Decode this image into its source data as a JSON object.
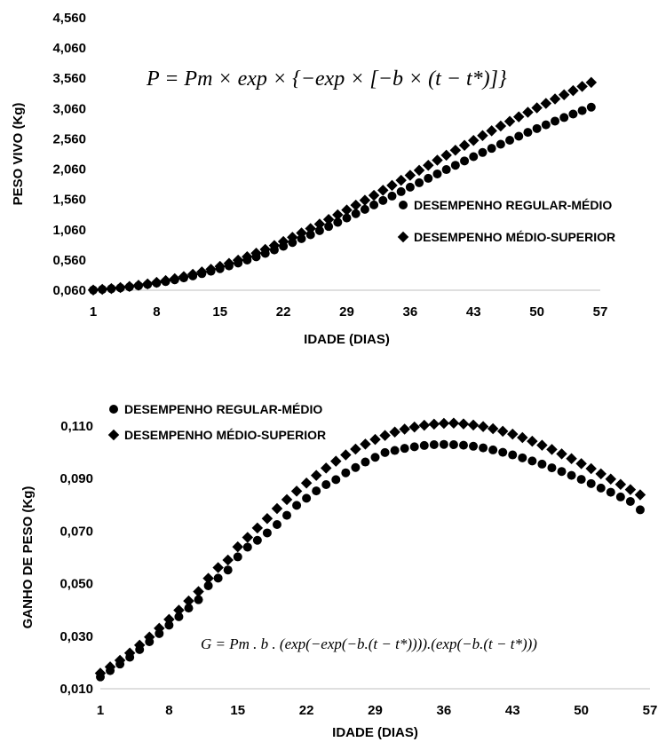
{
  "chart_data": [
    {
      "type": "scatter",
      "title": "",
      "xlabel": "IDADE (DIAS)",
      "ylabel": "PESO VIVO (Kg)",
      "xlim": [
        1,
        57
      ],
      "ylim": [
        0.06,
        4.56
      ],
      "xticks": [
        "1",
        "8",
        "15",
        "22",
        "29",
        "36",
        "43",
        "50",
        "57"
      ],
      "yticks": [
        "0,060",
        "0,560",
        "1,060",
        "1,560",
        "2,060",
        "2,560",
        "3,060",
        "3,560",
        "4,060",
        "4,560"
      ],
      "legend_position": "right",
      "formula": "P = Pm × exp × {−exp × [−b × (t − t*)]}",
      "series": [
        {
          "name": "DESEMPENHO REGULAR-MÉDIO",
          "marker": "circle",
          "x": [
            1,
            2,
            3,
            4,
            5,
            6,
            7,
            8,
            9,
            10,
            11,
            12,
            13,
            14,
            15,
            16,
            17,
            18,
            19,
            20,
            21,
            22,
            23,
            24,
            25,
            26,
            27,
            28,
            29,
            30,
            31,
            32,
            33,
            34,
            35,
            36,
            37,
            38,
            39,
            40,
            41,
            42,
            43,
            44,
            45,
            46,
            47,
            48,
            49,
            50,
            51,
            52,
            53,
            54,
            55,
            56
          ],
          "y": [
            0.063,
            0.073,
            0.085,
            0.099,
            0.115,
            0.134,
            0.155,
            0.178,
            0.204,
            0.232,
            0.263,
            0.297,
            0.334,
            0.373,
            0.416,
            0.461,
            0.509,
            0.559,
            0.612,
            0.668,
            0.726,
            0.786,
            0.848,
            0.912,
            0.977,
            1.044,
            1.113,
            1.182,
            1.253,
            1.324,
            1.396,
            1.469,
            1.542,
            1.615,
            1.688,
            1.762,
            1.835,
            1.908,
            1.981,
            2.053,
            2.124,
            2.195,
            2.266,
            2.335,
            2.403,
            2.471,
            2.537,
            2.603,
            2.667,
            2.73,
            2.792,
            2.853,
            2.912,
            2.97,
            3.027,
            3.083
          ]
        },
        {
          "name": "DESEMPENHO MÉDIO-SUPERIOR",
          "marker": "diamond",
          "x": [
            1,
            2,
            3,
            4,
            5,
            6,
            7,
            8,
            9,
            10,
            11,
            12,
            13,
            14,
            15,
            16,
            17,
            18,
            19,
            20,
            21,
            22,
            23,
            24,
            25,
            26,
            27,
            28,
            29,
            30,
            31,
            32,
            33,
            34,
            35,
            36,
            37,
            38,
            39,
            40,
            41,
            42,
            43,
            44,
            45,
            46,
            47,
            48,
            49,
            50,
            51,
            52,
            53,
            54,
            55,
            56
          ],
          "y": [
            0.064,
            0.075,
            0.088,
            0.104,
            0.122,
            0.142,
            0.165,
            0.191,
            0.219,
            0.251,
            0.285,
            0.323,
            0.363,
            0.407,
            0.454,
            0.504,
            0.557,
            0.613,
            0.672,
            0.734,
            0.798,
            0.865,
            0.934,
            1.005,
            1.078,
            1.152,
            1.229,
            1.306,
            1.385,
            1.465,
            1.546,
            1.627,
            1.71,
            1.792,
            1.875,
            1.958,
            2.041,
            2.124,
            2.207,
            2.29,
            2.372,
            2.453,
            2.534,
            2.614,
            2.693,
            2.771,
            2.848,
            2.924,
            2.999,
            3.073,
            3.146,
            3.218,
            3.288,
            3.357,
            3.425,
            3.492
          ]
        }
      ]
    },
    {
      "type": "scatter",
      "title": "",
      "xlabel": "IDADE (DIAS)",
      "ylabel": "GANHO DE PESO (Kg)",
      "xlim": [
        1,
        57
      ],
      "ylim": [
        0.01,
        0.11
      ],
      "xticks": [
        "1",
        "8",
        "15",
        "22",
        "29",
        "36",
        "43",
        "50",
        "57"
      ],
      "yticks": [
        "0,010",
        "0,030",
        "0,050",
        "0,070",
        "0,090",
        "0,110"
      ],
      "legend_position": "top-left",
      "formula": "G = Pm . b . (exp(−exp(−b.(t − t*)))).(exp(−b.(t − t*)))",
      "series": [
        {
          "name": "DESEMPENHO REGULAR-MÉDIO",
          "marker": "circle",
          "x": [
            1,
            2,
            3,
            4,
            5,
            6,
            7,
            8,
            9,
            10,
            11,
            12,
            13,
            14,
            15,
            16,
            17,
            18,
            19,
            20,
            21,
            22,
            23,
            24,
            25,
            26,
            27,
            28,
            29,
            30,
            31,
            32,
            33,
            34,
            35,
            36,
            37,
            38,
            39,
            40,
            41,
            42,
            43,
            44,
            45,
            46,
            47,
            48,
            49,
            50,
            51,
            52,
            53,
            54,
            55,
            56
          ],
          "y": [
            0.0145,
            0.0169,
            0.0194,
            0.022,
            0.0249,
            0.0279,
            0.031,
            0.0342,
            0.0374,
            0.0407,
            0.0439,
            0.0492,
            0.0521,
            0.0552,
            0.0602,
            0.0639,
            0.0665,
            0.0693,
            0.0725,
            0.076,
            0.0798,
            0.0825,
            0.0853,
            0.0877,
            0.0896,
            0.0922,
            0.0942,
            0.0963,
            0.0981,
            0.0999,
            0.1007,
            0.1015,
            0.1021,
            0.1026,
            0.1029,
            0.103,
            0.1029,
            0.1027,
            0.1023,
            0.1017,
            0.1009,
            0.1,
            0.099,
            0.0979,
            0.0967,
            0.0955,
            0.0941,
            0.0927,
            0.0912,
            0.0897,
            0.0881,
            0.0864,
            0.0848,
            0.083,
            0.0813,
            0.0781
          ]
        },
        {
          "name": "DESEMPENHO MÉDIO-SUPERIOR",
          "marker": "diamond",
          "x": [
            1,
            2,
            3,
            4,
            5,
            6,
            7,
            8,
            9,
            10,
            11,
            12,
            13,
            14,
            15,
            16,
            17,
            18,
            19,
            20,
            21,
            22,
            23,
            24,
            25,
            26,
            27,
            28,
            29,
            30,
            31,
            32,
            33,
            34,
            35,
            36,
            37,
            38,
            39,
            40,
            41,
            42,
            43,
            44,
            45,
            46,
            47,
            48,
            49,
            50,
            51,
            52,
            53,
            54,
            55,
            56
          ],
          "y": [
            0.0159,
            0.0183,
            0.0208,
            0.0236,
            0.0266,
            0.0297,
            0.033,
            0.0364,
            0.0399,
            0.0434,
            0.047,
            0.052,
            0.0561,
            0.059,
            0.064,
            0.0676,
            0.0712,
            0.0748,
            0.0786,
            0.082,
            0.0852,
            0.0883,
            0.0912,
            0.094,
            0.0966,
            0.099,
            0.1012,
            0.1031,
            0.1049,
            0.1064,
            0.1077,
            0.1088,
            0.1096,
            0.1103,
            0.1107,
            0.111,
            0.1111,
            0.1108,
            0.1104,
            0.1098,
            0.109,
            0.108,
            0.1069,
            0.1056,
            0.1042,
            0.1027,
            0.1011,
            0.0994,
            0.0976,
            0.0957,
            0.0938,
            0.0918,
            0.0898,
            0.0878,
            0.0858,
            0.0838
          ]
        }
      ]
    }
  ]
}
